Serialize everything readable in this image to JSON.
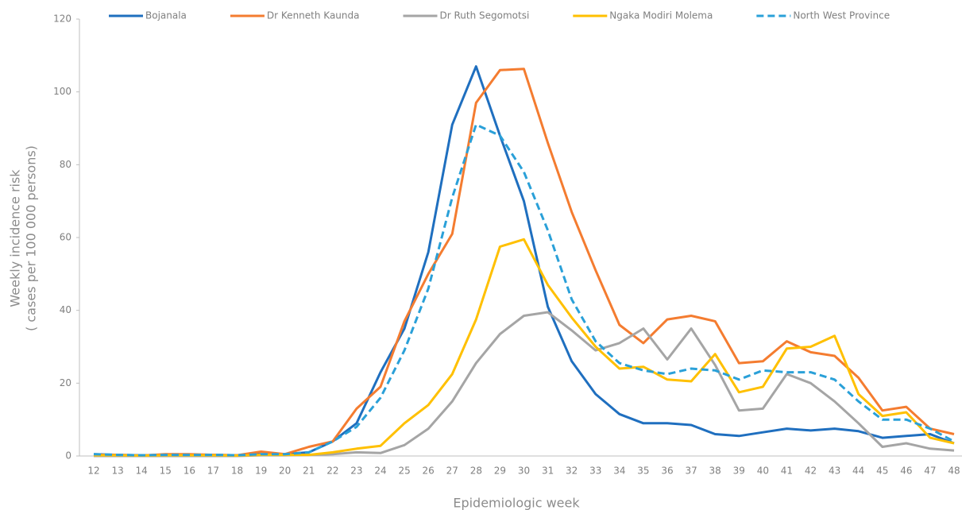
{
  "chart_data": {
    "type": "line",
    "xlabel": "Epidemiologic week",
    "ylabel": [
      "Weekly incidence risk",
      "( cases per 100 000 persons)"
    ],
    "categories": [
      "12",
      "13",
      "14",
      "15",
      "16",
      "17",
      "18",
      "19",
      "20",
      "21",
      "22",
      "23",
      "24",
      "25",
      "26",
      "27",
      "28",
      "29",
      "30",
      "31",
      "32",
      "33",
      "34",
      "35",
      "36",
      "37",
      "38",
      "39",
      "40",
      "41",
      "42",
      "43",
      "44",
      "45",
      "46",
      "47",
      "48"
    ],
    "ylim": [
      0,
      120
    ],
    "yticks": [
      0,
      20,
      40,
      60,
      80,
      100,
      120
    ],
    "grid": false,
    "legend": "top",
    "series": [
      {
        "name": "Bojanala",
        "color": "#1f6fbf",
        "dashed": false,
        "values": [
          0.5,
          0.3,
          0.2,
          0.3,
          0.3,
          0.3,
          0.2,
          0.5,
          0.5,
          1,
          4,
          9,
          23,
          35,
          56,
          91,
          107,
          88,
          70,
          41,
          26,
          17,
          11.5,
          9,
          9,
          8.5,
          6,
          5.5,
          6.5,
          7.5,
          7,
          7.5,
          6.8,
          5,
          5.5,
          6,
          3.5
        ]
      },
      {
        "name": "Dr Kenneth Kaunda",
        "color": "#f47c30",
        "dashed": false,
        "values": [
          0.3,
          0.3,
          0.1,
          0.5,
          0.5,
          0.3,
          0.2,
          1.2,
          0.5,
          2.5,
          4,
          13,
          19,
          37,
          50,
          61,
          97,
          106,
          106.3,
          86,
          67,
          51,
          36,
          31,
          37.5,
          38.5,
          37,
          25.5,
          26,
          31.5,
          28.5,
          27.5,
          21.5,
          12.5,
          13.5,
          7.5,
          6
        ]
      },
      {
        "name": "Dr Ruth Segomotsi",
        "color": "#a5a5a5",
        "dashed": false,
        "values": [
          0,
          0,
          0,
          0,
          0,
          0,
          0,
          0.2,
          0.2,
          0.3,
          0.5,
          1,
          0.8,
          3,
          7.5,
          15,
          25.5,
          33.5,
          38.5,
          39.5,
          34.5,
          29,
          31,
          35,
          26.5,
          35,
          25,
          12.5,
          13,
          22.5,
          20,
          15,
          9,
          2.5,
          3.5,
          2,
          1.5
        ]
      },
      {
        "name": "Ngaka Modiri Molema",
        "color": "#ffc000",
        "dashed": false,
        "values": [
          0.2,
          0.2,
          0.1,
          0.2,
          0.2,
          0.2,
          0.1,
          0.3,
          0.3,
          0.3,
          1,
          2,
          2.8,
          9,
          14,
          22.5,
          37.5,
          57.5,
          59.5,
          47,
          38,
          30,
          24,
          24.5,
          21,
          20.5,
          28,
          17.5,
          19,
          29.5,
          30,
          33,
          17,
          11,
          12,
          5,
          3.5
        ]
      },
      {
        "name": "North West Province",
        "color": "#2aa0d8",
        "dashed": true,
        "values": [
          0.5,
          0.3,
          0.2,
          0.3,
          0.3,
          0.3,
          0.2,
          0.5,
          0.5,
          1,
          4,
          8,
          16,
          29,
          46,
          71,
          91,
          88,
          78,
          62,
          43,
          31.5,
          25.5,
          23.5,
          22.5,
          24,
          23.5,
          21,
          23.5,
          23,
          23,
          21,
          15,
          10,
          10,
          7.5,
          4
        ]
      }
    ]
  }
}
